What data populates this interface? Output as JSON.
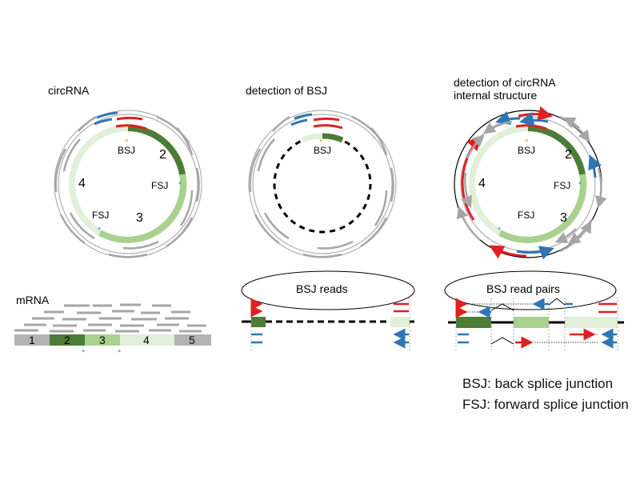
{
  "colors": {
    "exon1": "#b3b3b3",
    "exon2": "#4c7c35",
    "exon3": "#a9d18e",
    "exon4": "#e2efd9",
    "exon5": "#b3b3b3",
    "read_gray": "#a6a6a6",
    "read_red": "#e02020",
    "read_blue": "#2e75b6",
    "junction_orange": "#f0a030",
    "junction_blue": "#3a9ad9",
    "ink": "#000000"
  },
  "panels": {
    "circrna": {
      "title": "circRNA",
      "bsj": "BSJ",
      "fsj_right": "FSJ",
      "fsj_bottom": "FSJ",
      "exon_labels": [
        "2",
        "3",
        "4"
      ]
    },
    "bsj_detection": {
      "title": "detection of BSJ",
      "bsj": "BSJ"
    },
    "structure": {
      "title_line1": "detection of circRNA",
      "title_line2": "internal structure",
      "bsj": "BSJ",
      "fsj_right": "FSJ",
      "fsj_bottom": "FSJ",
      "exon_labels": [
        "2",
        "3",
        "4"
      ]
    }
  },
  "bottom": {
    "mrna": {
      "title": "mRNA",
      "exons": [
        "1",
        "2",
        "3",
        "4",
        "5"
      ]
    },
    "bsj_reads": {
      "title": "BSJ reads"
    },
    "bsj_read_pairs": {
      "title": "BSJ read pairs"
    }
  },
  "legend": {
    "bsj": "BSJ: back splice junction",
    "fsj": "FSJ: forward splice junction"
  }
}
